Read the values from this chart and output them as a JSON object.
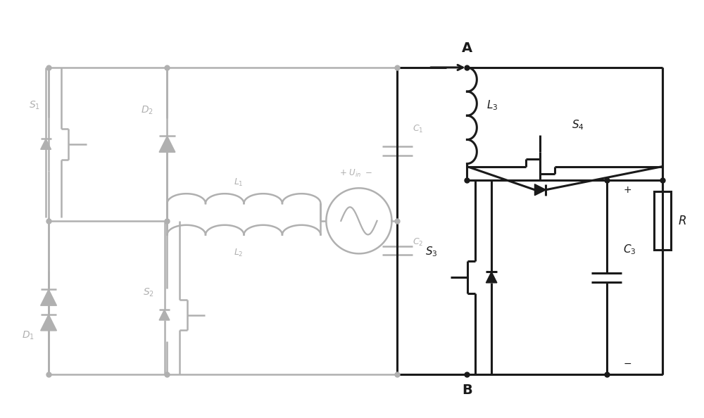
{
  "gray": "#b0b0b0",
  "black": "#1a1a1a",
  "white": "#ffffff",
  "lw_gray": 1.8,
  "lw_black": 2.2,
  "dot_r": 5,
  "fig_width": 10.0,
  "fig_height": 5.94
}
